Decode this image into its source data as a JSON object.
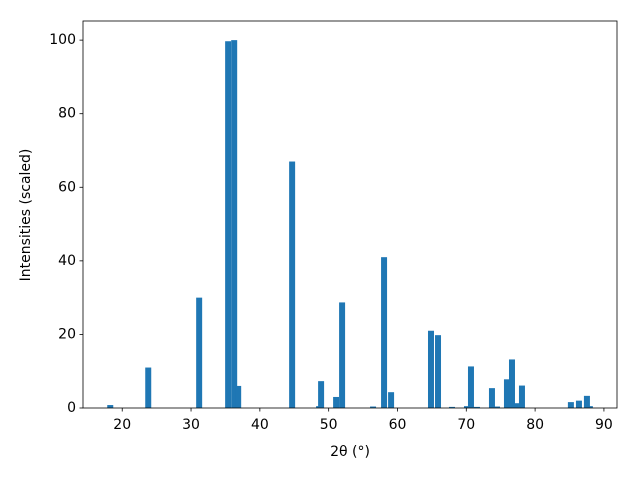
{
  "chart_data": {
    "type": "bar",
    "x_label": "2θ (°)",
    "y_label": "Intensities (scaled)",
    "x": [
      18.26,
      23.78,
      31.18,
      35.39,
      36.27,
      36.85,
      44.69,
      48.61,
      48.9,
      51.08,
      51.95,
      56.45,
      58.05,
      59.07,
      64.87,
      65.89,
      67.92,
      70.1,
      70.68,
      71.55,
      73.73,
      74.46,
      75.91,
      76.64,
      77.22,
      78.09,
      85.2,
      86.37,
      87.53,
      87.96
    ],
    "values": [
      0.8,
      11,
      30,
      99.7,
      100,
      6,
      67,
      0.5,
      7.3,
      3,
      28.7,
      0.4,
      41,
      4.3,
      21,
      19.8,
      0.3,
      0.5,
      11.3,
      0.3,
      5.4,
      0.4,
      7.8,
      13.2,
      1.3,
      6.1,
      1.6,
      2,
      3.3,
      0.5
    ],
    "color": "#1f77b4",
    "xlim": [
      14.3,
      91.9
    ],
    "xticks": [
      20,
      30,
      40,
      50,
      60,
      70,
      80,
      90
    ],
    "ylim": [
      0,
      105.2
    ],
    "yticks": [
      0,
      20,
      40,
      60,
      80,
      100
    ]
  }
}
